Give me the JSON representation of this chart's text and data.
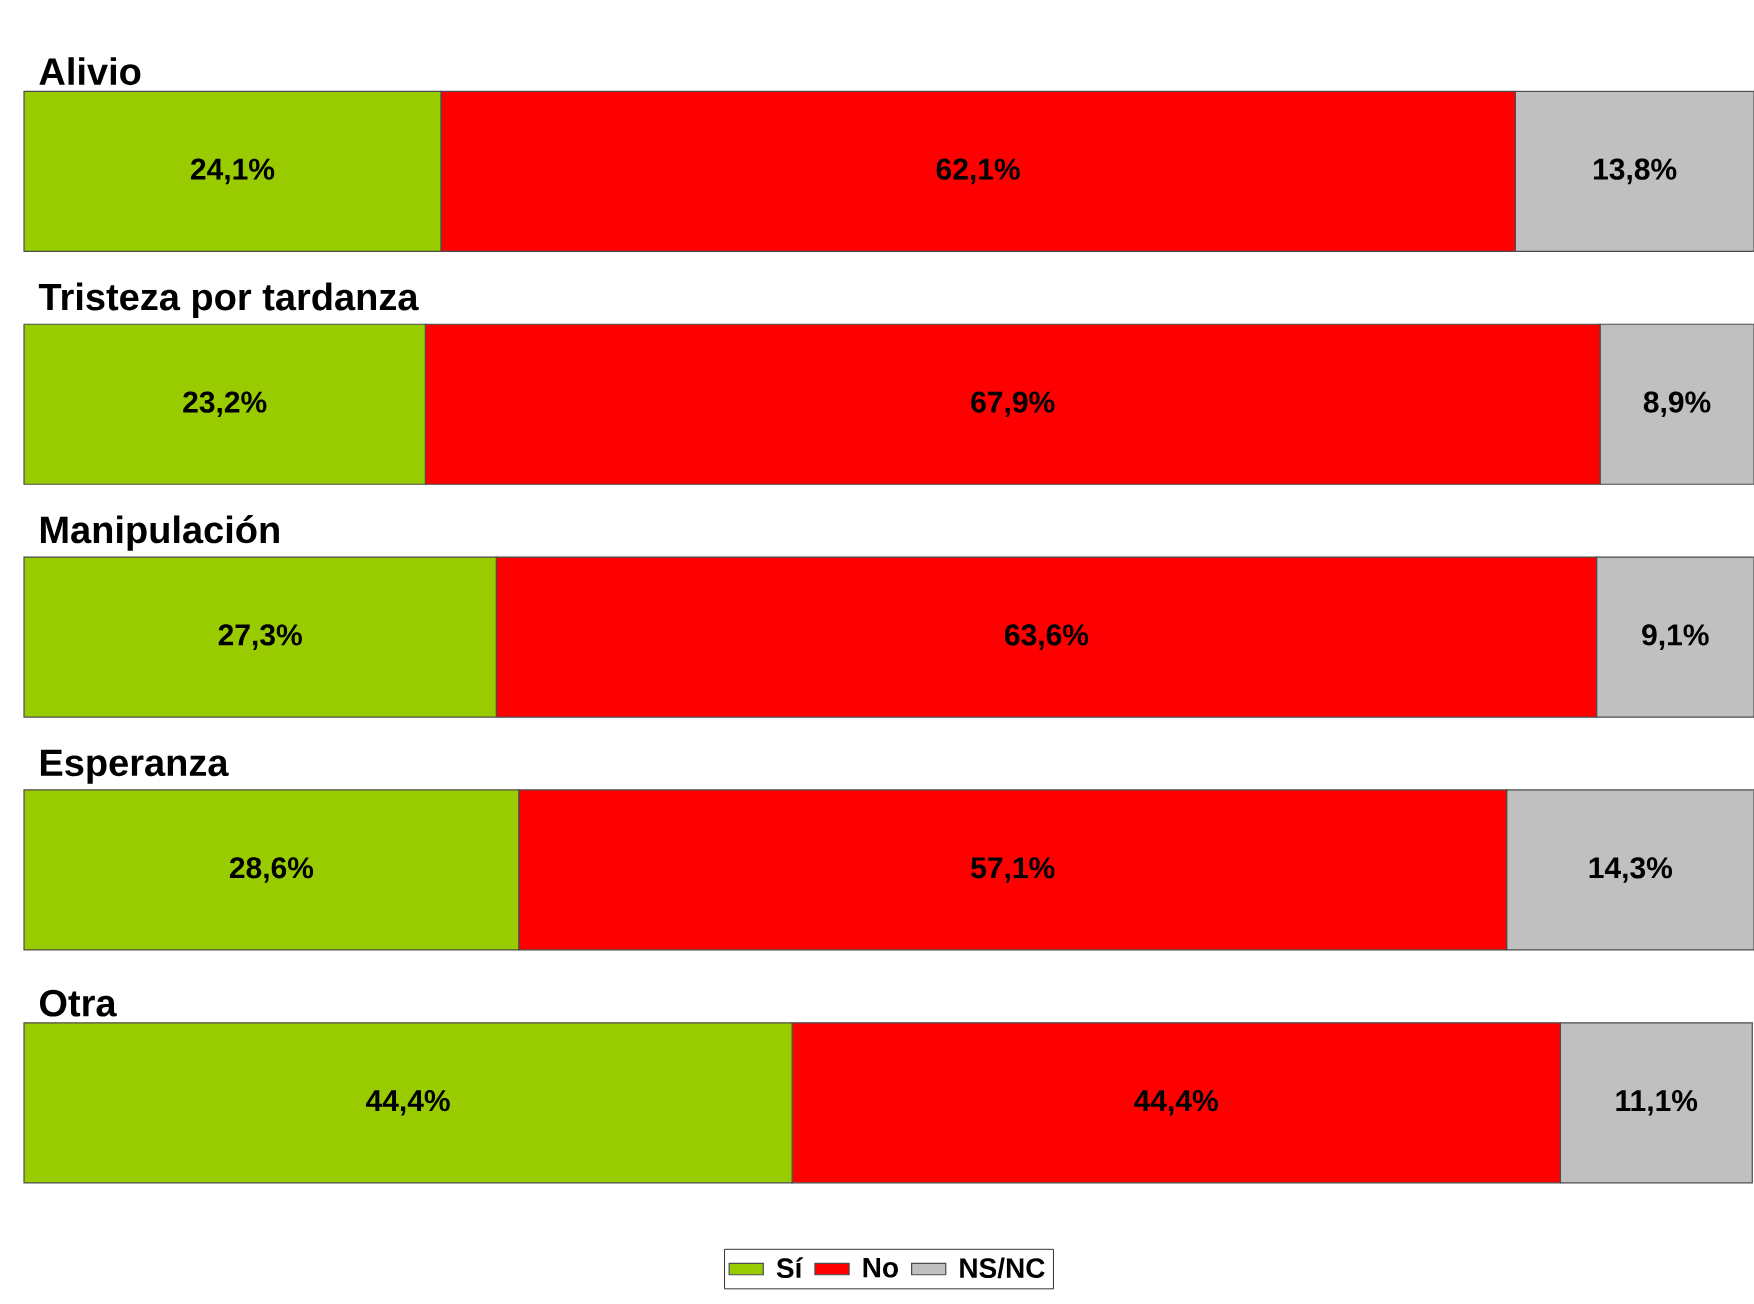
{
  "chart_data": {
    "type": "bar",
    "orientation": "horizontal",
    "stacked": true,
    "categories": [
      "Alivio",
      "Tristeza por tardanza",
      "Manipulación",
      "Esperanza",
      "Otra"
    ],
    "legend": "bottom",
    "series": [
      {
        "name": "Sí",
        "color": "#99cc00",
        "values": [
          24.1,
          23.2,
          27.3,
          28.6,
          44.4
        ],
        "value_labels": [
          "24,1%",
          "23,2%",
          "27,3%",
          "28,6%",
          "44,4%"
        ]
      },
      {
        "name": "No",
        "color": "#ff0000",
        "values": [
          62.1,
          67.9,
          63.6,
          57.1,
          44.4
        ],
        "value_labels": [
          "62,1%",
          "67,9%",
          "63,6%",
          "57,1%",
          "44,4%"
        ]
      },
      {
        "name": "NS/NC",
        "color": "#c0c0c0",
        "values": [
          13.8,
          8.9,
          9.1,
          14.3,
          11.1
        ],
        "value_labels": [
          "13,8%",
          "8,9%",
          "9,1%",
          "14,3%",
          "11,1%"
        ]
      }
    ]
  }
}
